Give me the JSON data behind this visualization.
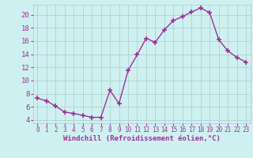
{
  "x": [
    0,
    1,
    2,
    3,
    4,
    5,
    6,
    7,
    8,
    9,
    10,
    11,
    12,
    13,
    14,
    15,
    16,
    17,
    18,
    19,
    20,
    21,
    22,
    23
  ],
  "y": [
    7.3,
    6.9,
    6.1,
    5.2,
    5.0,
    4.7,
    4.4,
    4.4,
    8.5,
    6.5,
    11.5,
    13.9,
    16.4,
    15.8,
    17.7,
    19.1,
    19.7,
    20.4,
    21.0,
    20.3,
    16.2,
    14.5,
    13.5,
    12.8
  ],
  "line_color": "#993399",
  "marker": "+",
  "marker_size": 4,
  "marker_linewidth": 1.2,
  "bg_color": "#cff0f0",
  "grid_color": "#aacccc",
  "xlabel": "Windchill (Refroidissement éolien,°C)",
  "xlabel_color": "#993399",
  "tick_color": "#993399",
  "ylim": [
    3.5,
    21.5
  ],
  "yticks": [
    4,
    6,
    8,
    10,
    12,
    14,
    16,
    18,
    20
  ],
  "xlim": [
    -0.5,
    23.5
  ],
  "xticks": [
    0,
    1,
    2,
    3,
    4,
    5,
    6,
    7,
    8,
    9,
    10,
    11,
    12,
    13,
    14,
    15,
    16,
    17,
    18,
    19,
    20,
    21,
    22,
    23
  ],
  "line_width": 1.0,
  "font_size_xlabel": 6.5,
  "font_size_tick_x": 5.5,
  "font_size_tick_y": 6.5
}
